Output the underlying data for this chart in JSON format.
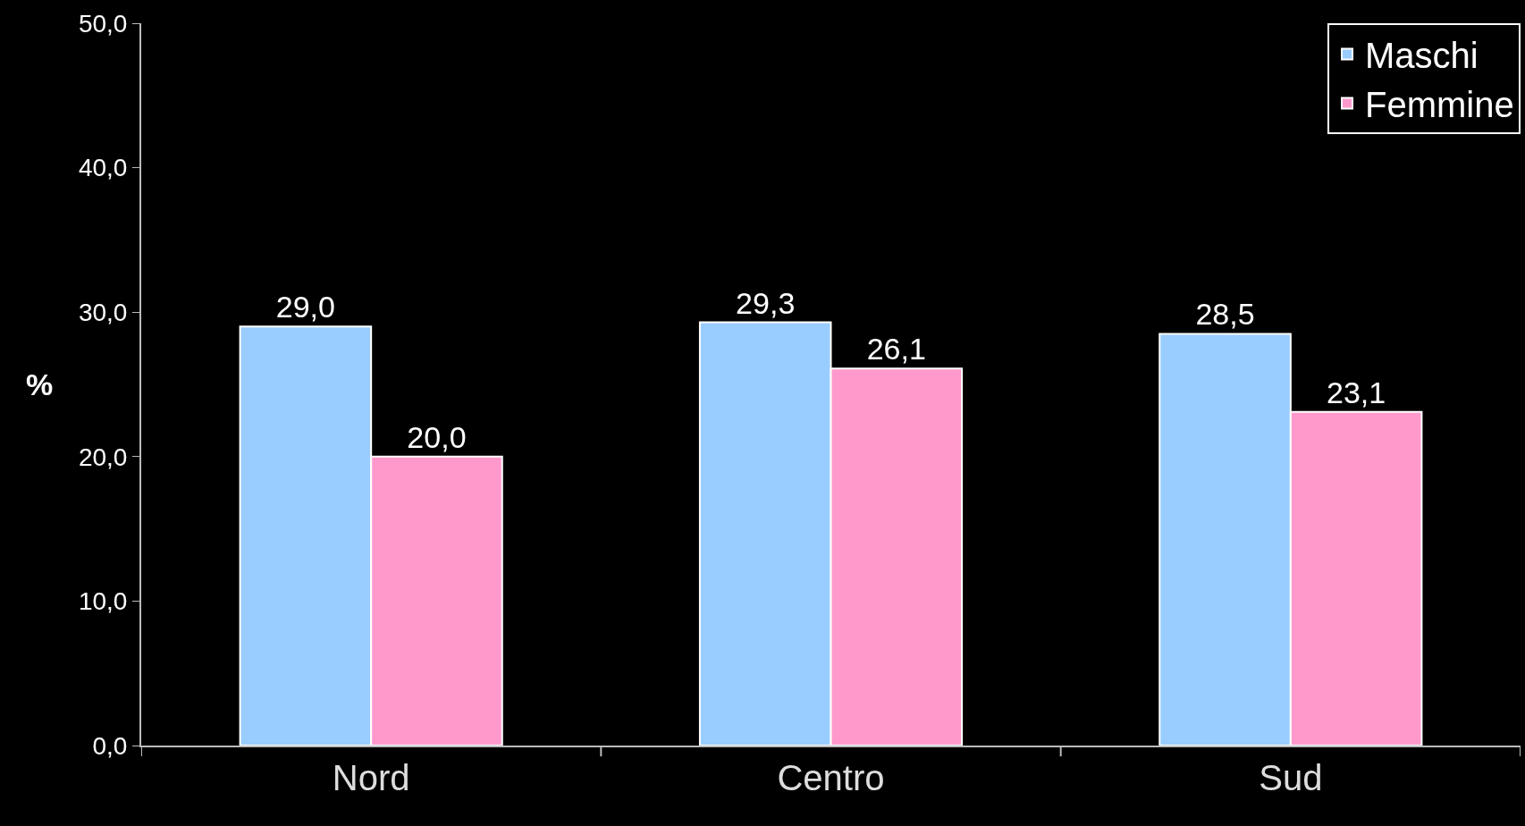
{
  "chart_data": {
    "type": "bar",
    "ylabel": "%",
    "categories": [
      "Nord",
      "Centro",
      "Sud"
    ],
    "series": [
      {
        "name": "Maschi",
        "color": "#99ccff",
        "values": [
          29.0,
          29.3,
          28.5
        ],
        "value_labels": [
          "29,0",
          "29,3",
          "28,5"
        ]
      },
      {
        "name": "Femmine",
        "color": "#ff99cc",
        "values": [
          20.0,
          26.1,
          23.1
        ],
        "value_labels": [
          "20,0",
          "26,1",
          "23,1"
        ]
      }
    ],
    "ylim": [
      0,
      50
    ],
    "yticks": [
      {
        "value": 0,
        "label": "0,0"
      },
      {
        "value": 10,
        "label": "10,0"
      },
      {
        "value": 20,
        "label": "20,0"
      },
      {
        "value": 30,
        "label": "30,0"
      },
      {
        "value": 40,
        "label": "40,0"
      },
      {
        "value": 50,
        "label": "50,0"
      }
    ],
    "grid": false,
    "legend": "top right"
  }
}
